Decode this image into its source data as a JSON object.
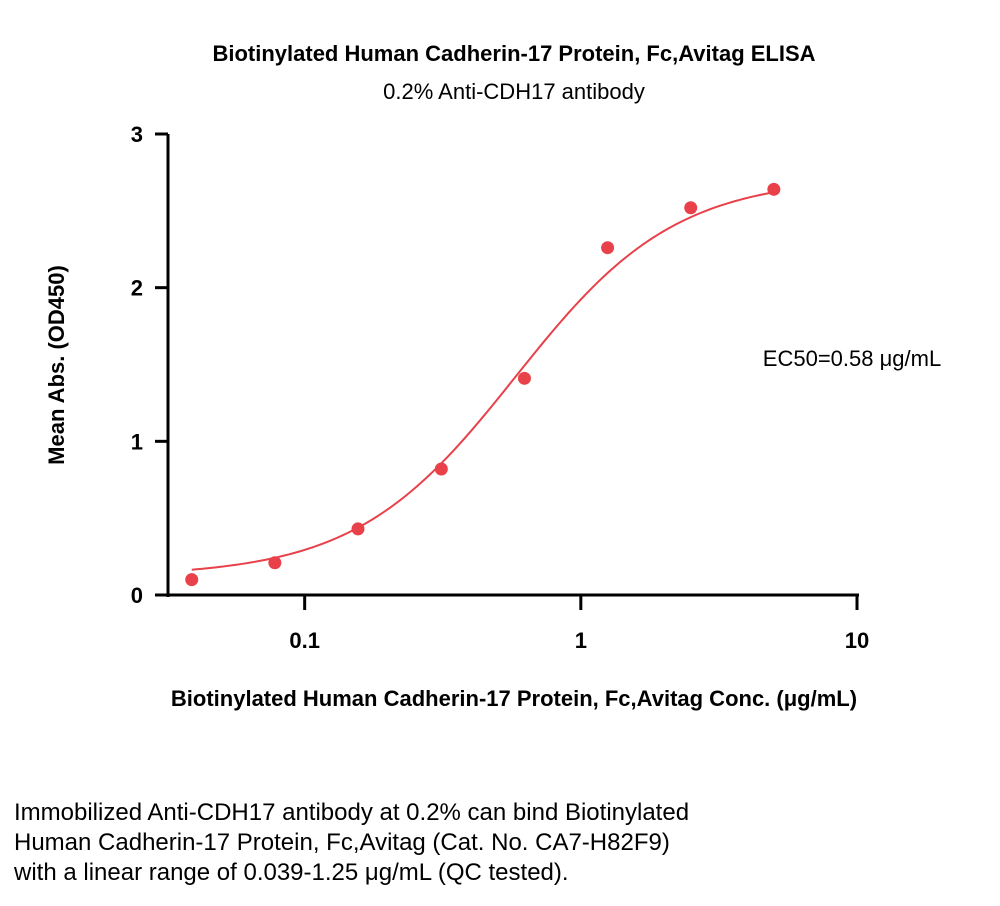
{
  "chart_data": {
    "type": "scatter",
    "title": "Biotinylated Human Cadherin-17 Protein, Fc,Avitag ELISA",
    "subtitle": "0.2% Anti-CDH17 antibody",
    "xlabel": "Biotinylated Human Cadherin-17 Protein, Fc,Avitag Conc. (μg/mL)",
    "ylabel": "Mean Abs. (OD450)",
    "x_scale": "log",
    "xlim": [
      0.032,
      10
    ],
    "ylim": [
      0,
      3
    ],
    "x_ticks": [
      {
        "value": 0.1,
        "label": "0.1"
      },
      {
        "value": 1,
        "label": "1"
      },
      {
        "value": 10,
        "label": "10"
      }
    ],
    "y_ticks": [
      {
        "value": 0,
        "label": "0"
      },
      {
        "value": 1,
        "label": "1"
      },
      {
        "value": 2,
        "label": "2"
      },
      {
        "value": 3,
        "label": "3"
      }
    ],
    "grid": false,
    "marker_color": "#e8414a",
    "curve_color": "#e8414a",
    "series": [
      {
        "x": [
          0.039,
          0.078,
          0.156,
          0.3125,
          0.625,
          1.25,
          2.5,
          5
        ],
        "y": [
          0.1,
          0.21,
          0.43,
          0.82,
          1.41,
          2.26,
          2.52,
          2.64
        ]
      }
    ],
    "fit": {
      "model": "4PL",
      "bottom": 0.12,
      "top": 2.72,
      "ec50": 0.58,
      "hill": 1.5
    },
    "annotation": "EC50=0.58 μg/mL"
  },
  "caption": [
    "Immobilized Anti-CDH17 antibody at 0.2% can bind Biotinylated",
    "Human Cadherin-17 Protein, Fc,Avitag (Cat. No. CA7-H82F9)",
    "with a linear range of 0.039-1.25 μg/mL (QC tested)."
  ]
}
